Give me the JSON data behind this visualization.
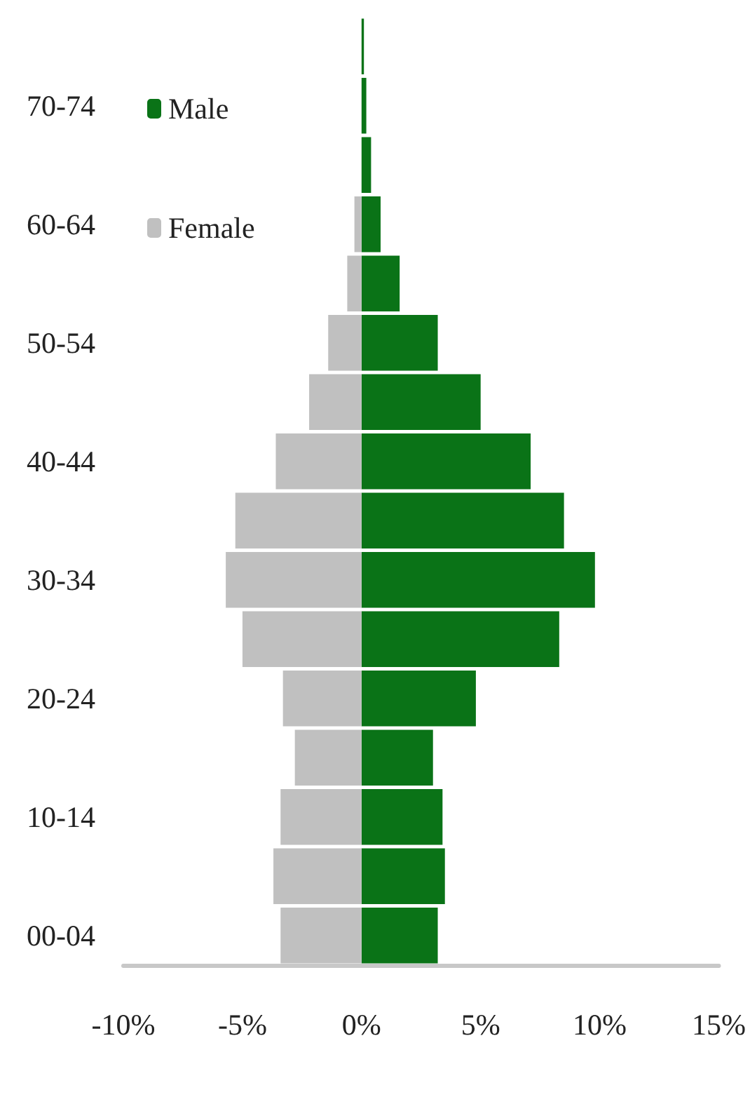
{
  "chart_data": {
    "type": "bar",
    "orientation": "horizontal",
    "categories": [
      null,
      "70-74",
      null,
      "60-64",
      null,
      "50-54",
      null,
      "40-44",
      null,
      "30-34",
      null,
      "20-24",
      null,
      "10-14",
      null,
      "00-04"
    ],
    "series": [
      {
        "name": "Male",
        "color": "#0a7317",
        "values": [
          0.1,
          0.2,
          0.4,
          0.8,
          1.6,
          3.2,
          5.0,
          7.1,
          8.5,
          9.8,
          8.3,
          4.8,
          3.0,
          3.4,
          3.5,
          3.2
        ]
      },
      {
        "name": "Female",
        "color": "#c0c0c0",
        "values": [
          0,
          0,
          null,
          -0.3,
          -0.6,
          -1.4,
          -2.2,
          -3.6,
          -5.3,
          -5.7,
          -5.0,
          -3.3,
          -2.8,
          -3.4,
          -3.7,
          -3.4
        ]
      }
    ],
    "xlim": [
      -10,
      15
    ],
    "xticks": [
      {
        "value": -10,
        "label": "-10%"
      },
      {
        "value": -5,
        "label": "-5%"
      },
      {
        "value": 0,
        "label": "0%"
      },
      {
        "value": 5,
        "label": "5%"
      },
      {
        "value": 10,
        "label": "10%"
      },
      {
        "value": 15,
        "label": "15%"
      }
    ],
    "stacked": true,
    "legend": "top left",
    "grid": false
  }
}
